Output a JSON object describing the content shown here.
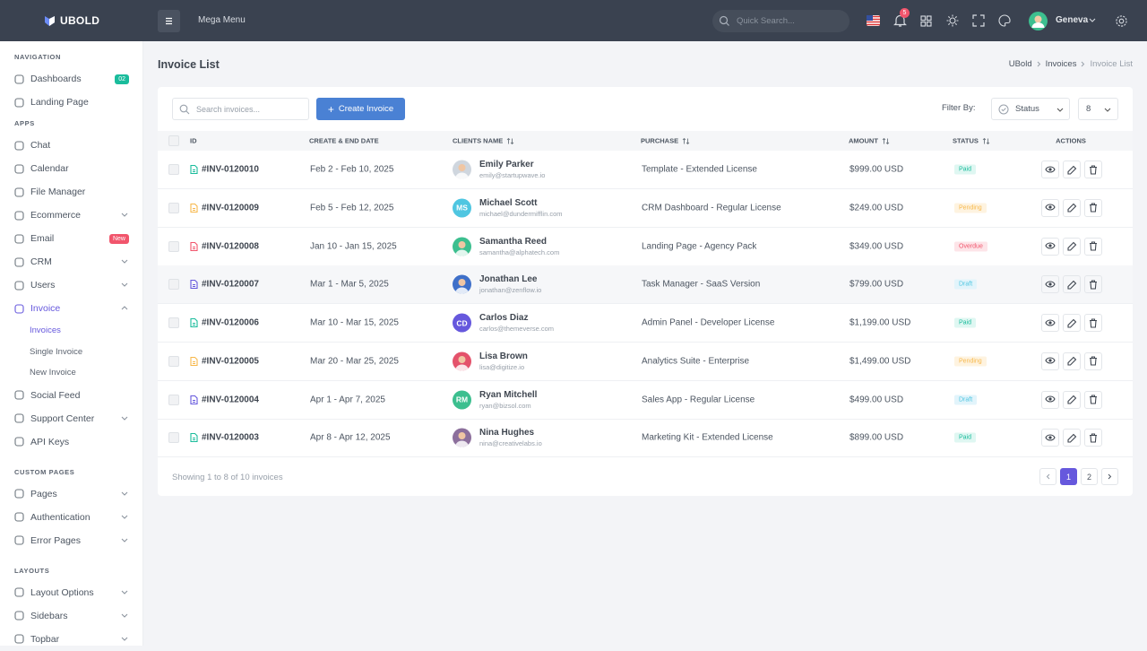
{
  "topbar": {
    "brand": "UBOLD",
    "mega_menu": "Mega Menu",
    "search_placeholder": "Quick Search...",
    "notification_count": "5",
    "user_name": "Geneva"
  },
  "sidebar": {
    "sections": [
      {
        "title": "NAVIGATION",
        "items": [
          {
            "label": "Dashboards",
            "badge": "02"
          },
          {
            "label": "Landing Page"
          }
        ]
      },
      {
        "title": "APPS",
        "items": [
          {
            "label": "Chat"
          },
          {
            "label": "Calendar"
          },
          {
            "label": "File Manager"
          },
          {
            "label": "Ecommerce",
            "expandable": true
          },
          {
            "label": "Email",
            "badge": "New"
          },
          {
            "label": "CRM",
            "expandable": true
          },
          {
            "label": "Users",
            "expandable": true
          },
          {
            "label": "Invoice",
            "expandable": true,
            "expanded": true,
            "children": [
              "Invoices",
              "Single Invoice",
              "New Invoice"
            ]
          },
          {
            "label": "Social Feed"
          },
          {
            "label": "Support Center",
            "expandable": true
          },
          {
            "label": "API Keys"
          }
        ]
      },
      {
        "title": "CUSTOM PAGES",
        "items": [
          {
            "label": "Pages",
            "expandable": true
          },
          {
            "label": "Authentication",
            "expandable": true
          },
          {
            "label": "Error Pages",
            "expandable": true
          }
        ]
      },
      {
        "title": "LAYOUTS",
        "items": [
          {
            "label": "Layout Options",
            "expandable": true
          },
          {
            "label": "Sidebars",
            "expandable": true
          },
          {
            "label": "Topbar",
            "expandable": true
          }
        ]
      }
    ]
  },
  "page": {
    "title": "Invoice List",
    "breadcrumb": [
      "UBold",
      "Invoices",
      "Invoice List"
    ]
  },
  "toolbar": {
    "search_placeholder": "Search invoices...",
    "create_button": "Create Invoice",
    "filter_label": "Filter By:",
    "status_select": "Status",
    "page_size": "8"
  },
  "table": {
    "headers": [
      "ID",
      "CREATE & END DATE",
      "CLIENTS NAME",
      "PURCHASE",
      "AMOUNT",
      "STATUS",
      "ACTIONS"
    ],
    "rows": [
      {
        "id": "#INV-0120010",
        "dates": "Feb 2 - Feb 10, 2025",
        "client_name": "Emily Parker",
        "client_email": "emily@startupwave.io",
        "purchase": "Template - Extended License",
        "amount": "$999.00 USD",
        "status": "Paid"
      },
      {
        "id": "#INV-0120009",
        "dates": "Feb 5 - Feb 12, 2025",
        "client_name": "Michael Scott",
        "client_email": "michael@dundermifflin.com",
        "initials": "MS",
        "purchase": "CRM Dashboard - Regular License",
        "amount": "$249.00 USD",
        "status": "Pending"
      },
      {
        "id": "#INV-0120008",
        "dates": "Jan 10 - Jan 15, 2025",
        "client_name": "Samantha Reed",
        "client_email": "samantha@alphatech.com",
        "purchase": "Landing Page - Agency Pack",
        "amount": "$349.00 USD",
        "status": "Overdue"
      },
      {
        "id": "#INV-0120007",
        "dates": "Mar 1 - Mar 5, 2025",
        "client_name": "Jonathan Lee",
        "client_email": "jonathan@zenflow.io",
        "purchase": "Task Manager - SaaS Version",
        "amount": "$799.00 USD",
        "status": "Draft"
      },
      {
        "id": "#INV-0120006",
        "dates": "Mar 10 - Mar 15, 2025",
        "client_name": "Carlos Diaz",
        "client_email": "carlos@themeverse.com",
        "initials": "CD",
        "purchase": "Admin Panel - Developer License",
        "amount": "$1,199.00 USD",
        "status": "Paid"
      },
      {
        "id": "#INV-0120005",
        "dates": "Mar 20 - Mar 25, 2025",
        "client_name": "Lisa Brown",
        "client_email": "lisa@digitize.io",
        "purchase": "Analytics Suite - Enterprise",
        "amount": "$1,499.00 USD",
        "status": "Pending"
      },
      {
        "id": "#INV-0120004",
        "dates": "Apr 1 - Apr 7, 2025",
        "client_name": "Ryan Mitchell",
        "client_email": "ryan@bizsol.com",
        "initials": "RM",
        "purchase": "Sales App - Regular License",
        "amount": "$499.00 USD",
        "status": "Draft"
      },
      {
        "id": "#INV-0120003",
        "dates": "Apr 8 - Apr 12, 2025",
        "client_name": "Nina Hughes",
        "client_email": "nina@creativelabs.io",
        "purchase": "Marketing Kit - Extended License",
        "amount": "$899.00 USD",
        "status": "Paid"
      }
    ]
  },
  "pagination": {
    "summary": "Showing 1 to 8 of 10 invoices",
    "pages": [
      "1",
      "2"
    ]
  }
}
